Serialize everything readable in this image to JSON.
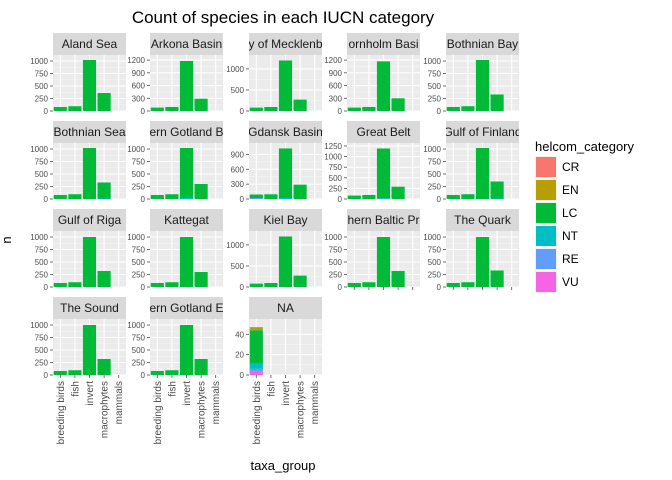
{
  "chart_data": {
    "type": "bar",
    "stacked": true,
    "title": "Count of species in each IUCN category",
    "xlabel": "taxa_group",
    "ylabel": "n",
    "grid": true,
    "legend_position": "right",
    "legend_title": "helcom_category",
    "categories": [
      "breeding birds",
      "fish",
      "invert",
      "macrophytes",
      "mammals"
    ],
    "iucn_categories": [
      "CR",
      "EN",
      "LC",
      "NT",
      "RE",
      "VU"
    ],
    "colors": {
      "CR": "#F8766D",
      "EN": "#B79F00",
      "LC": "#00BA38",
      "NT": "#00BFC4",
      "RE": "#619CFF",
      "VU": "#F564E3"
    },
    "panels": [
      {
        "label": "Aland Sea",
        "yticks": [
          0,
          250,
          500,
          750,
          1000
        ],
        "ylim": [
          0,
          1120
        ],
        "stacks": {
          "breeding birds": {
            "LC": 80
          },
          "fish": {
            "LC": 95
          },
          "invert": {
            "LC": 1020
          },
          "macrophytes": {
            "LC": 360
          },
          "mammals": {}
        }
      },
      {
        "label": "Arkona Basin",
        "yticks": [
          0,
          300,
          600,
          900,
          1200
        ],
        "ylim": [
          0,
          1320
        ],
        "stacks": {
          "breeding birds": {
            "LC": 80
          },
          "fish": {
            "LC": 95
          },
          "invert": {
            "LC": 1180
          },
          "macrophytes": {
            "LC": 290
          },
          "mammals": {}
        }
      },
      {
        "label": "y of Mecklenb",
        "yticks": [
          0,
          500,
          1000
        ],
        "ylim": [
          0,
          1330
        ],
        "stacks": {
          "breeding birds": {
            "LC": 80
          },
          "fish": {
            "LC": 95
          },
          "invert": {
            "LC": 1200
          },
          "macrophytes": {
            "LC": 270
          },
          "mammals": {}
        }
      },
      {
        "label": "ornholm Basi",
        "yticks": [
          0,
          300,
          600,
          900,
          1200
        ],
        "ylim": [
          0,
          1320
        ],
        "stacks": {
          "breeding birds": {
            "LC": 80
          },
          "fish": {
            "LC": 95
          },
          "invert": {
            "LC": 1170
          },
          "macrophytes": {
            "LC": 300
          },
          "mammals": {}
        }
      },
      {
        "label": "Bothnian Bay",
        "yticks": [
          0,
          250,
          500,
          750,
          1000
        ],
        "ylim": [
          0,
          1120
        ],
        "stacks": {
          "breeding birds": {
            "LC": 80
          },
          "fish": {
            "LC": 95
          },
          "invert": {
            "LC": 1020
          },
          "macrophytes": {
            "LC": 330
          },
          "mammals": {}
        }
      },
      {
        "label": "Bothnian Sea",
        "yticks": [
          0,
          250,
          500,
          750,
          1000
        ],
        "ylim": [
          0,
          1120
        ],
        "stacks": {
          "breeding birds": {
            "LC": 80
          },
          "fish": {
            "LC": 95
          },
          "invert": {
            "LC": 1020
          },
          "macrophytes": {
            "LC": 320,
            "NT": 10
          },
          "mammals": {}
        }
      },
      {
        "label": "ern Gotland B",
        "yticks": [
          0,
          250,
          500,
          750,
          1000
        ],
        "ylim": [
          0,
          1120
        ],
        "stacks": {
          "breeding birds": {
            "LC": 80
          },
          "fish": {
            "LC": 95
          },
          "invert": {
            "LC": 1000,
            "NT": 20
          },
          "macrophytes": {
            "LC": 300
          },
          "mammals": {}
        }
      },
      {
        "label": "Gdansk Basin",
        "yticks": [
          0,
          300,
          600,
          900
        ],
        "ylim": [
          0,
          1130
        ],
        "stacks": {
          "breeding birds": {
            "LC": 70,
            "RE": 20
          },
          "fish": {
            "LC": 95
          },
          "invert": {
            "LC": 1000,
            "NT": 20
          },
          "macrophytes": {
            "LC": 290
          },
          "mammals": {}
        }
      },
      {
        "label": "Great Belt",
        "yticks": [
          0,
          250,
          500,
          750,
          1000,
          1250
        ],
        "ylim": [
          0,
          1320
        ],
        "stacks": {
          "breeding birds": {
            "LC": 80
          },
          "fish": {
            "LC": 95
          },
          "invert": {
            "LC": 1170,
            "NT": 20
          },
          "macrophytes": {
            "LC": 290
          },
          "mammals": {}
        }
      },
      {
        "label": "Gulf of Finland",
        "yticks": [
          0,
          250,
          500,
          750,
          1000
        ],
        "ylim": [
          0,
          1120
        ],
        "stacks": {
          "breeding birds": {
            "LC": 80
          },
          "fish": {
            "LC": 95
          },
          "invert": {
            "LC": 1020
          },
          "macrophytes": {
            "LC": 340,
            "NT": 10
          },
          "mammals": {}
        }
      },
      {
        "label": "Gulf of Riga",
        "yticks": [
          0,
          250,
          500,
          750,
          1000
        ],
        "ylim": [
          0,
          1120
        ],
        "stacks": {
          "breeding birds": {
            "LC": 80
          },
          "fish": {
            "LC": 95
          },
          "invert": {
            "LC": 1000
          },
          "macrophytes": {
            "LC": 320
          },
          "mammals": {}
        }
      },
      {
        "label": "Kattegat",
        "yticks": [
          0,
          250,
          500,
          750,
          1000
        ],
        "ylim": [
          0,
          1120
        ],
        "stacks": {
          "breeding birds": {
            "LC": 80
          },
          "fish": {
            "LC": 95
          },
          "invert": {
            "LC": 1000
          },
          "macrophytes": {
            "LC": 300
          },
          "mammals": {}
        }
      },
      {
        "label": "Kiel Bay",
        "yticks": [
          0,
          500,
          1000
        ],
        "ylim": [
          0,
          1330
        ],
        "stacks": {
          "breeding birds": {
            "LC": 80
          },
          "fish": {
            "LC": 95
          },
          "invert": {
            "LC": 1200
          },
          "macrophytes": {
            "LC": 270
          },
          "mammals": {}
        }
      },
      {
        "label": "hern Baltic Pr",
        "yticks": [
          0,
          250,
          500,
          750,
          1000
        ],
        "ylim": [
          0,
          1120
        ],
        "stacks": {
          "breeding birds": {
            "LC": 80
          },
          "fish": {
            "LC": 95
          },
          "invert": {
            "LC": 1000
          },
          "macrophytes": {
            "LC": 320
          },
          "mammals": {}
        }
      },
      {
        "label": "The Quark",
        "yticks": [
          0,
          250,
          500,
          750,
          1000
        ],
        "ylim": [
          0,
          1120
        ],
        "stacks": {
          "breeding birds": {
            "LC": 80
          },
          "fish": {
            "LC": 95
          },
          "invert": {
            "LC": 1000
          },
          "macrophytes": {
            "LC": 330
          },
          "mammals": {}
        }
      },
      {
        "label": "The Sound",
        "yticks": [
          0,
          250,
          500,
          750,
          1000
        ],
        "ylim": [
          0,
          1120
        ],
        "stacks": {
          "breeding birds": {
            "LC": 80
          },
          "fish": {
            "LC": 95
          },
          "invert": {
            "LC": 1000
          },
          "macrophytes": {
            "LC": 320
          },
          "mammals": {}
        }
      },
      {
        "label": "ern Gotland E",
        "yticks": [
          0,
          250,
          500,
          750,
          1000
        ],
        "ylim": [
          0,
          1120
        ],
        "stacks": {
          "breeding birds": {
            "LC": 80
          },
          "fish": {
            "LC": 95
          },
          "invert": {
            "LC": 1000
          },
          "macrophytes": {
            "LC": 320
          },
          "mammals": {}
        }
      },
      {
        "label": "NA",
        "yticks": [
          0,
          20,
          40
        ],
        "ylim": [
          0,
          55
        ],
        "stacks": {
          "breeding birds": {
            "EN": 3,
            "LC": 33,
            "NT": 5,
            "RE": 2,
            "VU": 4
          },
          "fish": {},
          "invert": {},
          "macrophytes": {},
          "mammals": {}
        }
      }
    ]
  }
}
